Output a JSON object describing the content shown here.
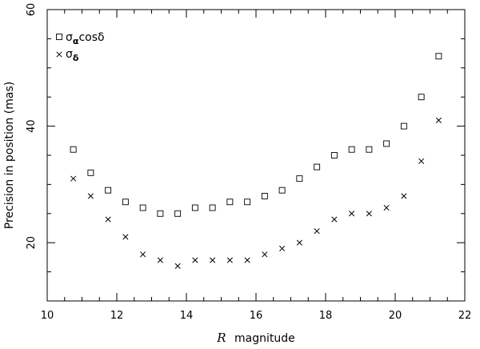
{
  "chart_data": {
    "type": "scatter",
    "title": "",
    "xlabel_italic": "R",
    "xlabel_rest": "magnitude",
    "ylabel": "Precision in position (mas)",
    "xlim": [
      10,
      22
    ],
    "ylim": [
      10,
      60
    ],
    "xticks_major": [
      10,
      12,
      14,
      16,
      18,
      20,
      22
    ],
    "yticks_major": [
      20,
      40,
      60
    ],
    "xticks_minor_step": 0.5,
    "yticks_minor_step": 5,
    "grid": false,
    "legend_position": "top-left",
    "x": [
      10.75,
      11.25,
      11.75,
      12.25,
      12.75,
      13.25,
      13.75,
      14.25,
      14.75,
      15.25,
      15.75,
      16.25,
      16.75,
      17.25,
      17.75,
      18.25,
      18.75,
      19.25,
      19.75,
      20.25,
      20.75,
      21.25
    ],
    "series": [
      {
        "name": "σαcosδ",
        "legend_main": "σ",
        "legend_sub": "α",
        "legend_tail": "cosδ",
        "marker": "square",
        "values": [
          36,
          32,
          29,
          27,
          26,
          25,
          25,
          26,
          26,
          27,
          27,
          28,
          29,
          31,
          33,
          35,
          36,
          36,
          37,
          40,
          45,
          52
        ]
      },
      {
        "name": "σδ",
        "legend_main": "σ",
        "legend_sub": "δ",
        "legend_tail": "",
        "marker": "cross",
        "values": [
          31,
          28,
          24,
          21,
          18,
          17,
          16,
          17,
          17,
          17,
          17,
          18,
          19,
          20,
          22,
          24,
          25,
          25,
          26,
          28,
          34,
          41
        ]
      }
    ]
  }
}
